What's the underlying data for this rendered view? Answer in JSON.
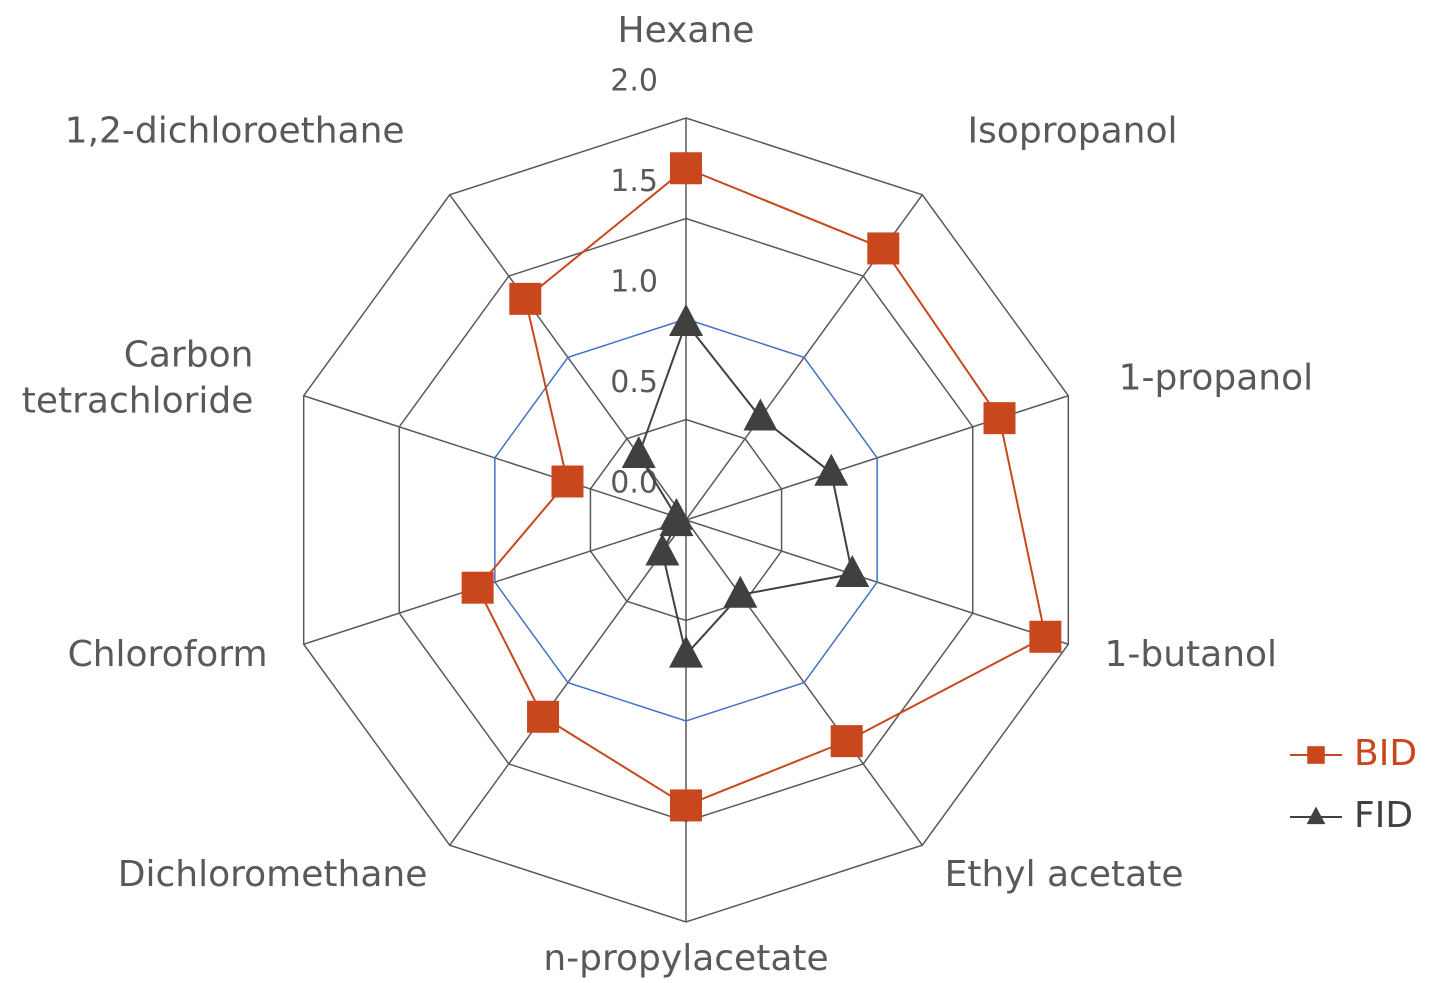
{
  "chart_data": {
    "type": "radar",
    "categories": [
      "Hexane",
      "Isopropanol",
      "1-propanol",
      "1-butanol",
      "Ethyl acetate",
      "n-propylacetate",
      "Dichloromethane",
      "Chloroform",
      "Carbon tetrachloride",
      "1,2-dichloroethane"
    ],
    "series": [
      {
        "name": "BID",
        "color": "#c9471d",
        "marker": "square",
        "values": [
          1.75,
          1.67,
          1.64,
          1.88,
          1.36,
          1.42,
          1.21,
          1.09,
          0.62,
          1.36
        ]
      },
      {
        "name": "FID",
        "color": "#404040",
        "marker": "triangle",
        "values": [
          0.98,
          0.63,
          0.76,
          0.87,
          0.46,
          0.67,
          0.2,
          0.05,
          0.05,
          0.4
        ]
      }
    ],
    "rlim": [
      0,
      2
    ],
    "rticks": [
      {
        "value": 0,
        "label": "0.0"
      },
      0.5,
      {
        "value": 1,
        "label": "1.0"
      },
      1.5,
      {
        "value": 2,
        "label": "2.0"
      }
    ],
    "grid": true,
    "legend": "right"
  }
}
